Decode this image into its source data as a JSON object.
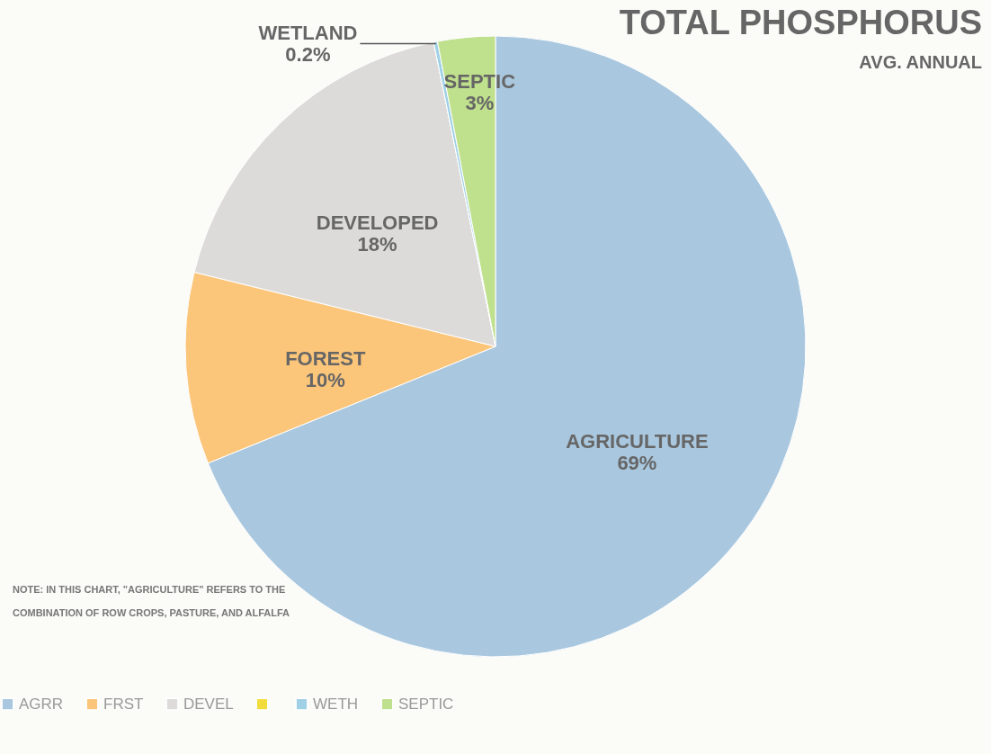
{
  "chart_data": {
    "type": "pie",
    "title": "TOTAL PHOSPHORUS",
    "subtitle": "AVG. ANNUAL",
    "categories": [
      "AGRR",
      "FRST",
      "DEVEL",
      null,
      "WETH",
      "SEPTIC"
    ],
    "values": [
      69,
      10,
      18,
      0,
      0.2,
      3
    ],
    "colors": [
      "#a9c8df",
      "#fbc57a",
      "#dcdbd9",
      "#f2dc3c",
      "#9fd0e6",
      "#bfe08c"
    ],
    "value_labels": [
      "AGRICULTURE\n69%",
      "FOREST\n10%",
      "DEVELOPED\n18%",
      null,
      "WETLAND\n0.2%",
      "SEPTIC\n3%"
    ],
    "legend": "bottom",
    "annotations": [
      "NOTE: IN THIS CHART, \"AGRICULTURE\" REFERS TO THE COMBINATION OF ROW CROPS, PASTURE, AND ALFALFA"
    ]
  }
}
